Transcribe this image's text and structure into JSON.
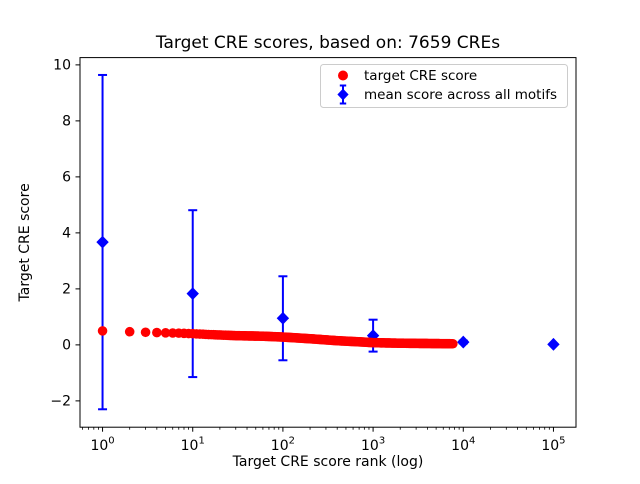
{
  "chart_data": {
    "type": "scatter",
    "title": "Target CRE scores, based on: 7659 CREs",
    "xlabel": "Target CRE score rank (log)",
    "ylabel": "Target CRE score",
    "x_scale": "log",
    "xlim_log10": [
      -0.25,
      5.25
    ],
    "ylim": [
      -2.94,
      10.26
    ],
    "grid": false,
    "n_cres": 7659,
    "x_tick_base": "10",
    "x_ticks": [
      {
        "v": 1,
        "exp": "0"
      },
      {
        "v": 10,
        "exp": "1"
      },
      {
        "v": 100,
        "exp": "2"
      },
      {
        "v": 1000,
        "exp": "3"
      },
      {
        "v": 10000,
        "exp": "4"
      },
      {
        "v": 100000,
        "exp": "5"
      }
    ],
    "y_ticks": [
      {
        "v": -2,
        "label": "−2"
      },
      {
        "v": 0,
        "label": "0"
      },
      {
        "v": 2,
        "label": "2"
      },
      {
        "v": 4,
        "label": "4"
      },
      {
        "v": 6,
        "label": "6"
      },
      {
        "v": 8,
        "label": "8"
      },
      {
        "v": 10,
        "label": "10"
      }
    ],
    "legend": {
      "position": "upper right",
      "entries": [
        {
          "label": "target CRE score",
          "marker": "circle",
          "color": "#ff0000"
        },
        {
          "label": "mean score across all motifs",
          "marker": "diamond-errorbar",
          "color": "#0000ff"
        }
      ]
    },
    "series": [
      {
        "name": "target CRE score",
        "type": "scatter",
        "marker": "circle",
        "color": "#ff0000",
        "n_points": 7659,
        "rank_score_anchors": [
          [
            1,
            0.5
          ],
          [
            2,
            0.47
          ],
          [
            3,
            0.45
          ],
          [
            4,
            0.44
          ],
          [
            5,
            0.43
          ],
          [
            7,
            0.42
          ],
          [
            10,
            0.4
          ],
          [
            15,
            0.37
          ],
          [
            30,
            0.33
          ],
          [
            60,
            0.31
          ],
          [
            100,
            0.28
          ],
          [
            200,
            0.22
          ],
          [
            400,
            0.15
          ],
          [
            700,
            0.11
          ],
          [
            1000,
            0.08
          ],
          [
            2000,
            0.06
          ],
          [
            4000,
            0.05
          ],
          [
            7659,
            0.04
          ]
        ]
      },
      {
        "name": "mean score across all motifs",
        "type": "errorbar",
        "marker": "diamond",
        "color": "#0000ff",
        "points": [
          {
            "x": 1,
            "mean": 3.67,
            "std": 5.97
          },
          {
            "x": 10,
            "mean": 1.83,
            "std": 2.98
          },
          {
            "x": 100,
            "mean": 0.95,
            "std": 1.5
          },
          {
            "x": 1000,
            "mean": 0.33,
            "std": 0.57
          },
          {
            "x": 10000,
            "mean": 0.1,
            "std": 0.05
          },
          {
            "x": 100000,
            "mean": 0.02,
            "std": 0.02
          }
        ]
      }
    ]
  }
}
